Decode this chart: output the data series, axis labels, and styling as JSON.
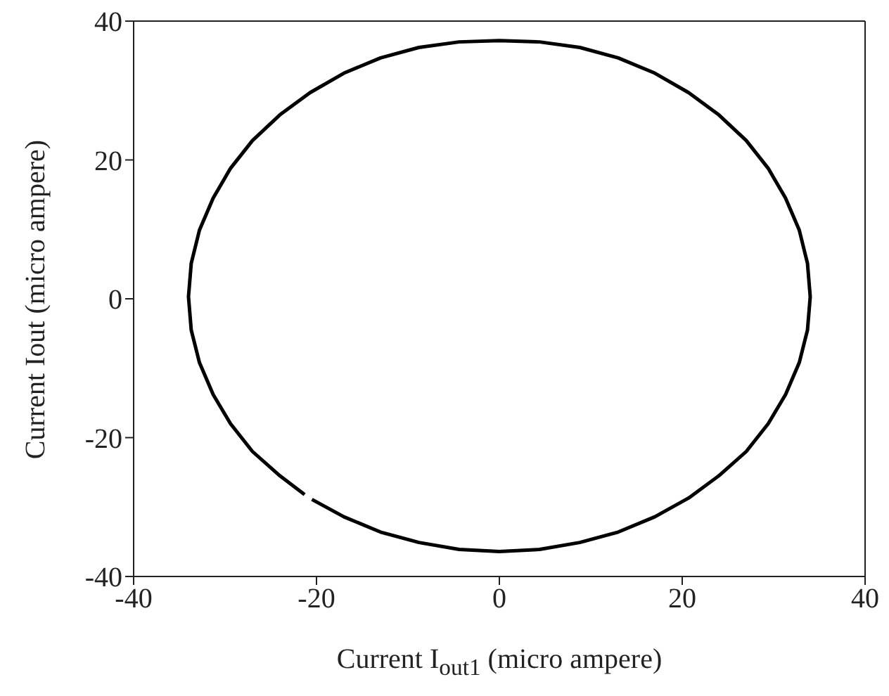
{
  "chart_data": {
    "type": "line",
    "xlabel": "Current I$_{out1}$ (micro ampere)",
    "ylabel": "Current Iout (micro ampere)",
    "series": [
      {
        "color": "#000000",
        "x": [
          -20.5,
          -17,
          -13,
          -8.8,
          -4.4,
          0,
          4.4,
          8.8,
          13,
          17,
          20.7,
          24,
          27,
          29.4,
          31.3,
          32.8,
          33.7,
          34,
          33.7,
          32.8,
          31.3,
          29.4,
          27,
          24,
          20.7,
          17,
          13,
          8.8,
          4.4,
          0,
          -4.4,
          -8.8,
          -13,
          -17,
          -20.7,
          -24,
          -27,
          -29.4,
          -31.3,
          -32.8,
          -33.7,
          -34,
          -33.7,
          -32.8,
          -31.3,
          -29.4,
          -27,
          -24,
          -21.3
        ],
        "values": [
          -28.9,
          -31.4,
          -33.6,
          -35.1,
          -36.1,
          -36.4,
          -36.1,
          -35.1,
          -33.6,
          -31.4,
          -28.7,
          -25.5,
          -22,
          -18,
          -13.8,
          -9.2,
          -4.5,
          0.3,
          5.1,
          9.9,
          14.5,
          18.8,
          22.8,
          26.5,
          29.7,
          32.5,
          34.7,
          36.2,
          37,
          37.2,
          37,
          36.2,
          34.7,
          32.5,
          29.7,
          26.5,
          22.8,
          18.8,
          14.5,
          9.9,
          5.1,
          0.3,
          -4.5,
          -9.2,
          -13.8,
          -18,
          -22,
          -25.5,
          -28.2
        ]
      }
    ],
    "xlim": [
      -40,
      40
    ],
    "ylim": [
      -40,
      40
    ],
    "xticks": [
      -40,
      -20,
      0,
      20,
      40
    ],
    "yticks": [
      -40,
      -20,
      0,
      20,
      40
    ],
    "grid": false,
    "legend": false,
    "marker": "none",
    "line_style": "solid"
  }
}
